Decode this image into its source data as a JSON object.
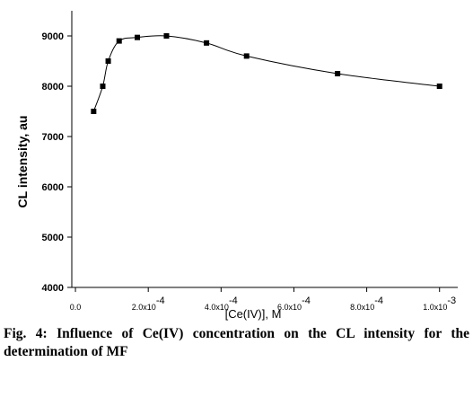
{
  "chart_data": {
    "type": "scatter",
    "title": "",
    "xlabel": "[Ce(IV)], M",
    "ylabel": "CL intensity, au",
    "xlim": [
      -1e-05,
      0.00105
    ],
    "ylim": [
      4000,
      9500
    ],
    "grid": false,
    "x_ticks": [
      {
        "value": 0,
        "label": "0.0",
        "exp": ""
      },
      {
        "value": 0.0002,
        "label": "2.0x10",
        "exp": "-4"
      },
      {
        "value": 0.0004,
        "label": "4.0x10",
        "exp": "-4"
      },
      {
        "value": 0.0006,
        "label": "6.0x10",
        "exp": "-4"
      },
      {
        "value": 0.0008,
        "label": "8.0x10",
        "exp": "-4"
      },
      {
        "value": 0.001,
        "label": "1.0x10",
        "exp": "-3"
      }
    ],
    "y_ticks": [
      4000,
      5000,
      6000,
      7000,
      8000,
      9000
    ],
    "series": [
      {
        "name": "",
        "color": "#000000",
        "x": [
          5e-05,
          7.5e-05,
          9e-05,
          0.00012,
          0.00017,
          0.00025,
          0.00036,
          0.00047,
          0.00072,
          0.001
        ],
        "y": [
          7500,
          8000,
          8500,
          8900,
          8970,
          9000,
          8860,
          8600,
          8250,
          8000
        ]
      }
    ]
  },
  "caption": "Fig. 4: Influence of Ce(IV) concentration on the CL intensity for the determination of MF"
}
